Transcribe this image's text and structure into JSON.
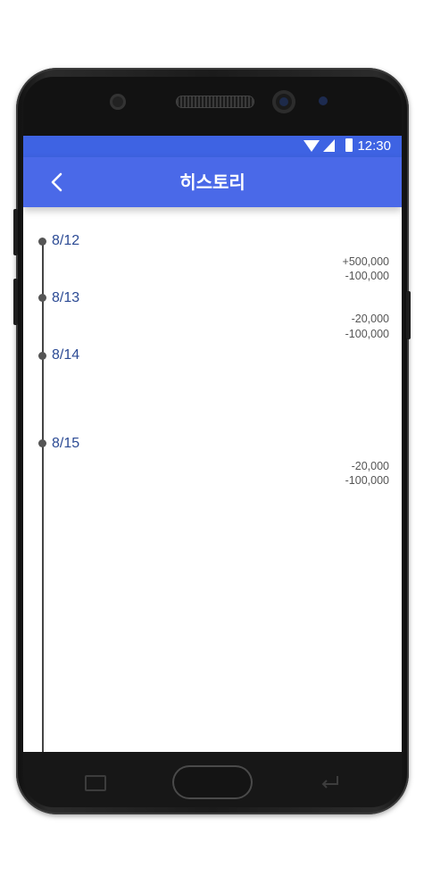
{
  "status_bar": {
    "time": "12:30"
  },
  "app_bar": {
    "title": "히스토리"
  },
  "timeline": [
    {
      "date": "8/12",
      "amounts": [
        "+500,000",
        "-100,000"
      ]
    },
    {
      "date": "8/13",
      "amounts": [
        "-20,000",
        "-100,000"
      ]
    },
    {
      "date": "8/14",
      "amounts": []
    },
    {
      "date": "8/15",
      "amounts": [
        "-20,000",
        "-100,000"
      ]
    }
  ],
  "colors": {
    "status_bar": "#3e63e3",
    "app_bar": "#4a69e8",
    "date_text": "#2b4a94"
  }
}
